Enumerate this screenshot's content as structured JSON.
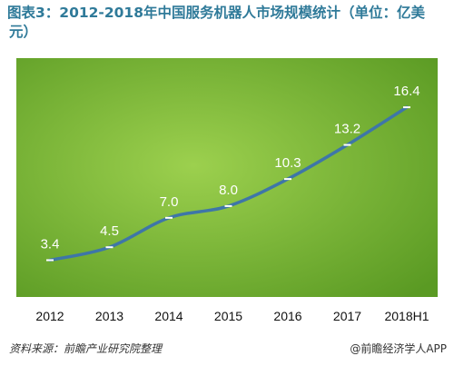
{
  "colors": {
    "title": "#2f7a99",
    "plot_bg_light": "#9cd04e",
    "plot_bg_dark": "#5a9a23",
    "line": "#3e76a8",
    "label": "#ffffff",
    "tick_text": "#111111",
    "footer_text": "#333333"
  },
  "title_lines": [
    "图表3：2012-2018年中国服务机器人市场规模统计（单位：亿美",
    "元）"
  ],
  "footer": {
    "source": "资料来源：前瞻产业研究院整理",
    "credit": "@前瞻经济学人APP"
  },
  "chart_data": {
    "type": "line",
    "title": "图表3：2012-2018年中国服务机器人市场规模统计（单位：亿美元）",
    "xlabel": "",
    "ylabel": "",
    "categories": [
      "2012",
      "2013",
      "2014",
      "2015",
      "2016",
      "2017",
      "2018H1"
    ],
    "series": [
      {
        "values": [
          3.4,
          4.5,
          7.0,
          8.0,
          10.3,
          13.2,
          16.4
        ]
      }
    ],
    "data_labels": [
      "3.4",
      "4.5",
      "7.0",
      "8.0",
      "10.3",
      "13.2",
      "16.4"
    ],
    "ylim": [
      0,
      20
    ],
    "grid": false,
    "legend": "none"
  }
}
